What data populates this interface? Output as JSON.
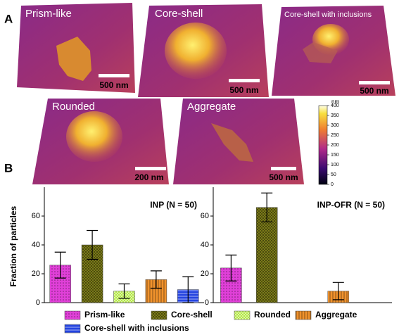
{
  "panels": {
    "a": {
      "label": "A",
      "images": [
        {
          "label": "Prism-like",
          "scale_bar": "500 nm"
        },
        {
          "label": "Core-shell",
          "scale_bar": "500 nm"
        },
        {
          "label": "Core-shell with inclusions",
          "scale_bar": "500 nm"
        },
        {
          "label": "Rounded",
          "scale_bar": "200 nm"
        },
        {
          "label": "Aggregate",
          "scale_bar": "500 nm"
        }
      ],
      "colorbar": {
        "unit": "nm",
        "lim": [
          0,
          400
        ],
        "ticks": [
          0,
          50,
          100,
          150,
          200,
          250,
          300,
          350,
          400
        ]
      }
    },
    "b": {
      "label": "B"
    }
  },
  "chart_data": {
    "type": "bar",
    "y_label": "Fraction of particles",
    "categories": [
      "INP (N = 50)",
      "INP-OFR (N = 50)"
    ],
    "series": [
      {
        "name": "Prism-like",
        "color": "#e040d8",
        "hatch": "dots",
        "values": [
          26,
          24
        ],
        "errors": [
          9,
          9
        ]
      },
      {
        "name": "Core-shell",
        "color": "#8c8c1c",
        "hatch": "grid",
        "values": [
          40,
          66
        ],
        "errors": [
          10,
          10
        ]
      },
      {
        "name": "Rounded",
        "color": "#b4e846",
        "hatch": "checker",
        "values": [
          8,
          null
        ],
        "errors": [
          5,
          null
        ]
      },
      {
        "name": "Aggregate",
        "color": "#f0922c",
        "hatch": "vertical",
        "values": [
          16,
          8
        ],
        "errors": [
          6,
          6
        ]
      },
      {
        "name": "Core-shell with inclusions",
        "color": "#2444e0",
        "hatch": "horizontal",
        "values": [
          9,
          null
        ],
        "errors": [
          9,
          null
        ]
      }
    ],
    "ylim": [
      0,
      80
    ],
    "yticks": [
      0,
      20,
      40,
      60
    ]
  }
}
